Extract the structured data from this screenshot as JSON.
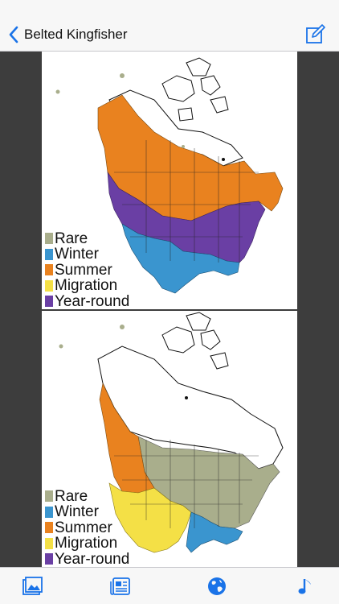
{
  "nav": {
    "title": "Belted Kingfisher",
    "back_icon": "chevron-left-icon",
    "compose_icon": "compose-icon"
  },
  "colors": {
    "accent": "#1a73e8",
    "rare": "#a9ae8c",
    "winter": "#3a95cf",
    "summer": "#e9821f",
    "migration": "#f4e046",
    "year_round": "#6a3fa4",
    "panel_bg": "#3d3d3d"
  },
  "maps": [
    {
      "legend": [
        {
          "label": "Rare",
          "color": "#a9ae8c"
        },
        {
          "label": "Winter",
          "color": "#3a95cf"
        },
        {
          "label": "Summer",
          "color": "#e9821f"
        },
        {
          "label": "Migration",
          "color": "#f4e046"
        },
        {
          "label": "Year-round",
          "color": "#6a3fa4"
        }
      ]
    },
    {
      "legend": [
        {
          "label": "Rare",
          "color": "#a9ae8c"
        },
        {
          "label": "Winter",
          "color": "#3a95cf"
        },
        {
          "label": "Summer",
          "color": "#e9821f"
        },
        {
          "label": "Migration",
          "color": "#f4e046"
        },
        {
          "label": "Year-round",
          "color": "#6a3fa4"
        }
      ]
    }
  ],
  "tabs": [
    {
      "icon": "photo-icon"
    },
    {
      "icon": "news-icon"
    },
    {
      "icon": "globe-icon"
    },
    {
      "icon": "music-note-icon"
    }
  ]
}
